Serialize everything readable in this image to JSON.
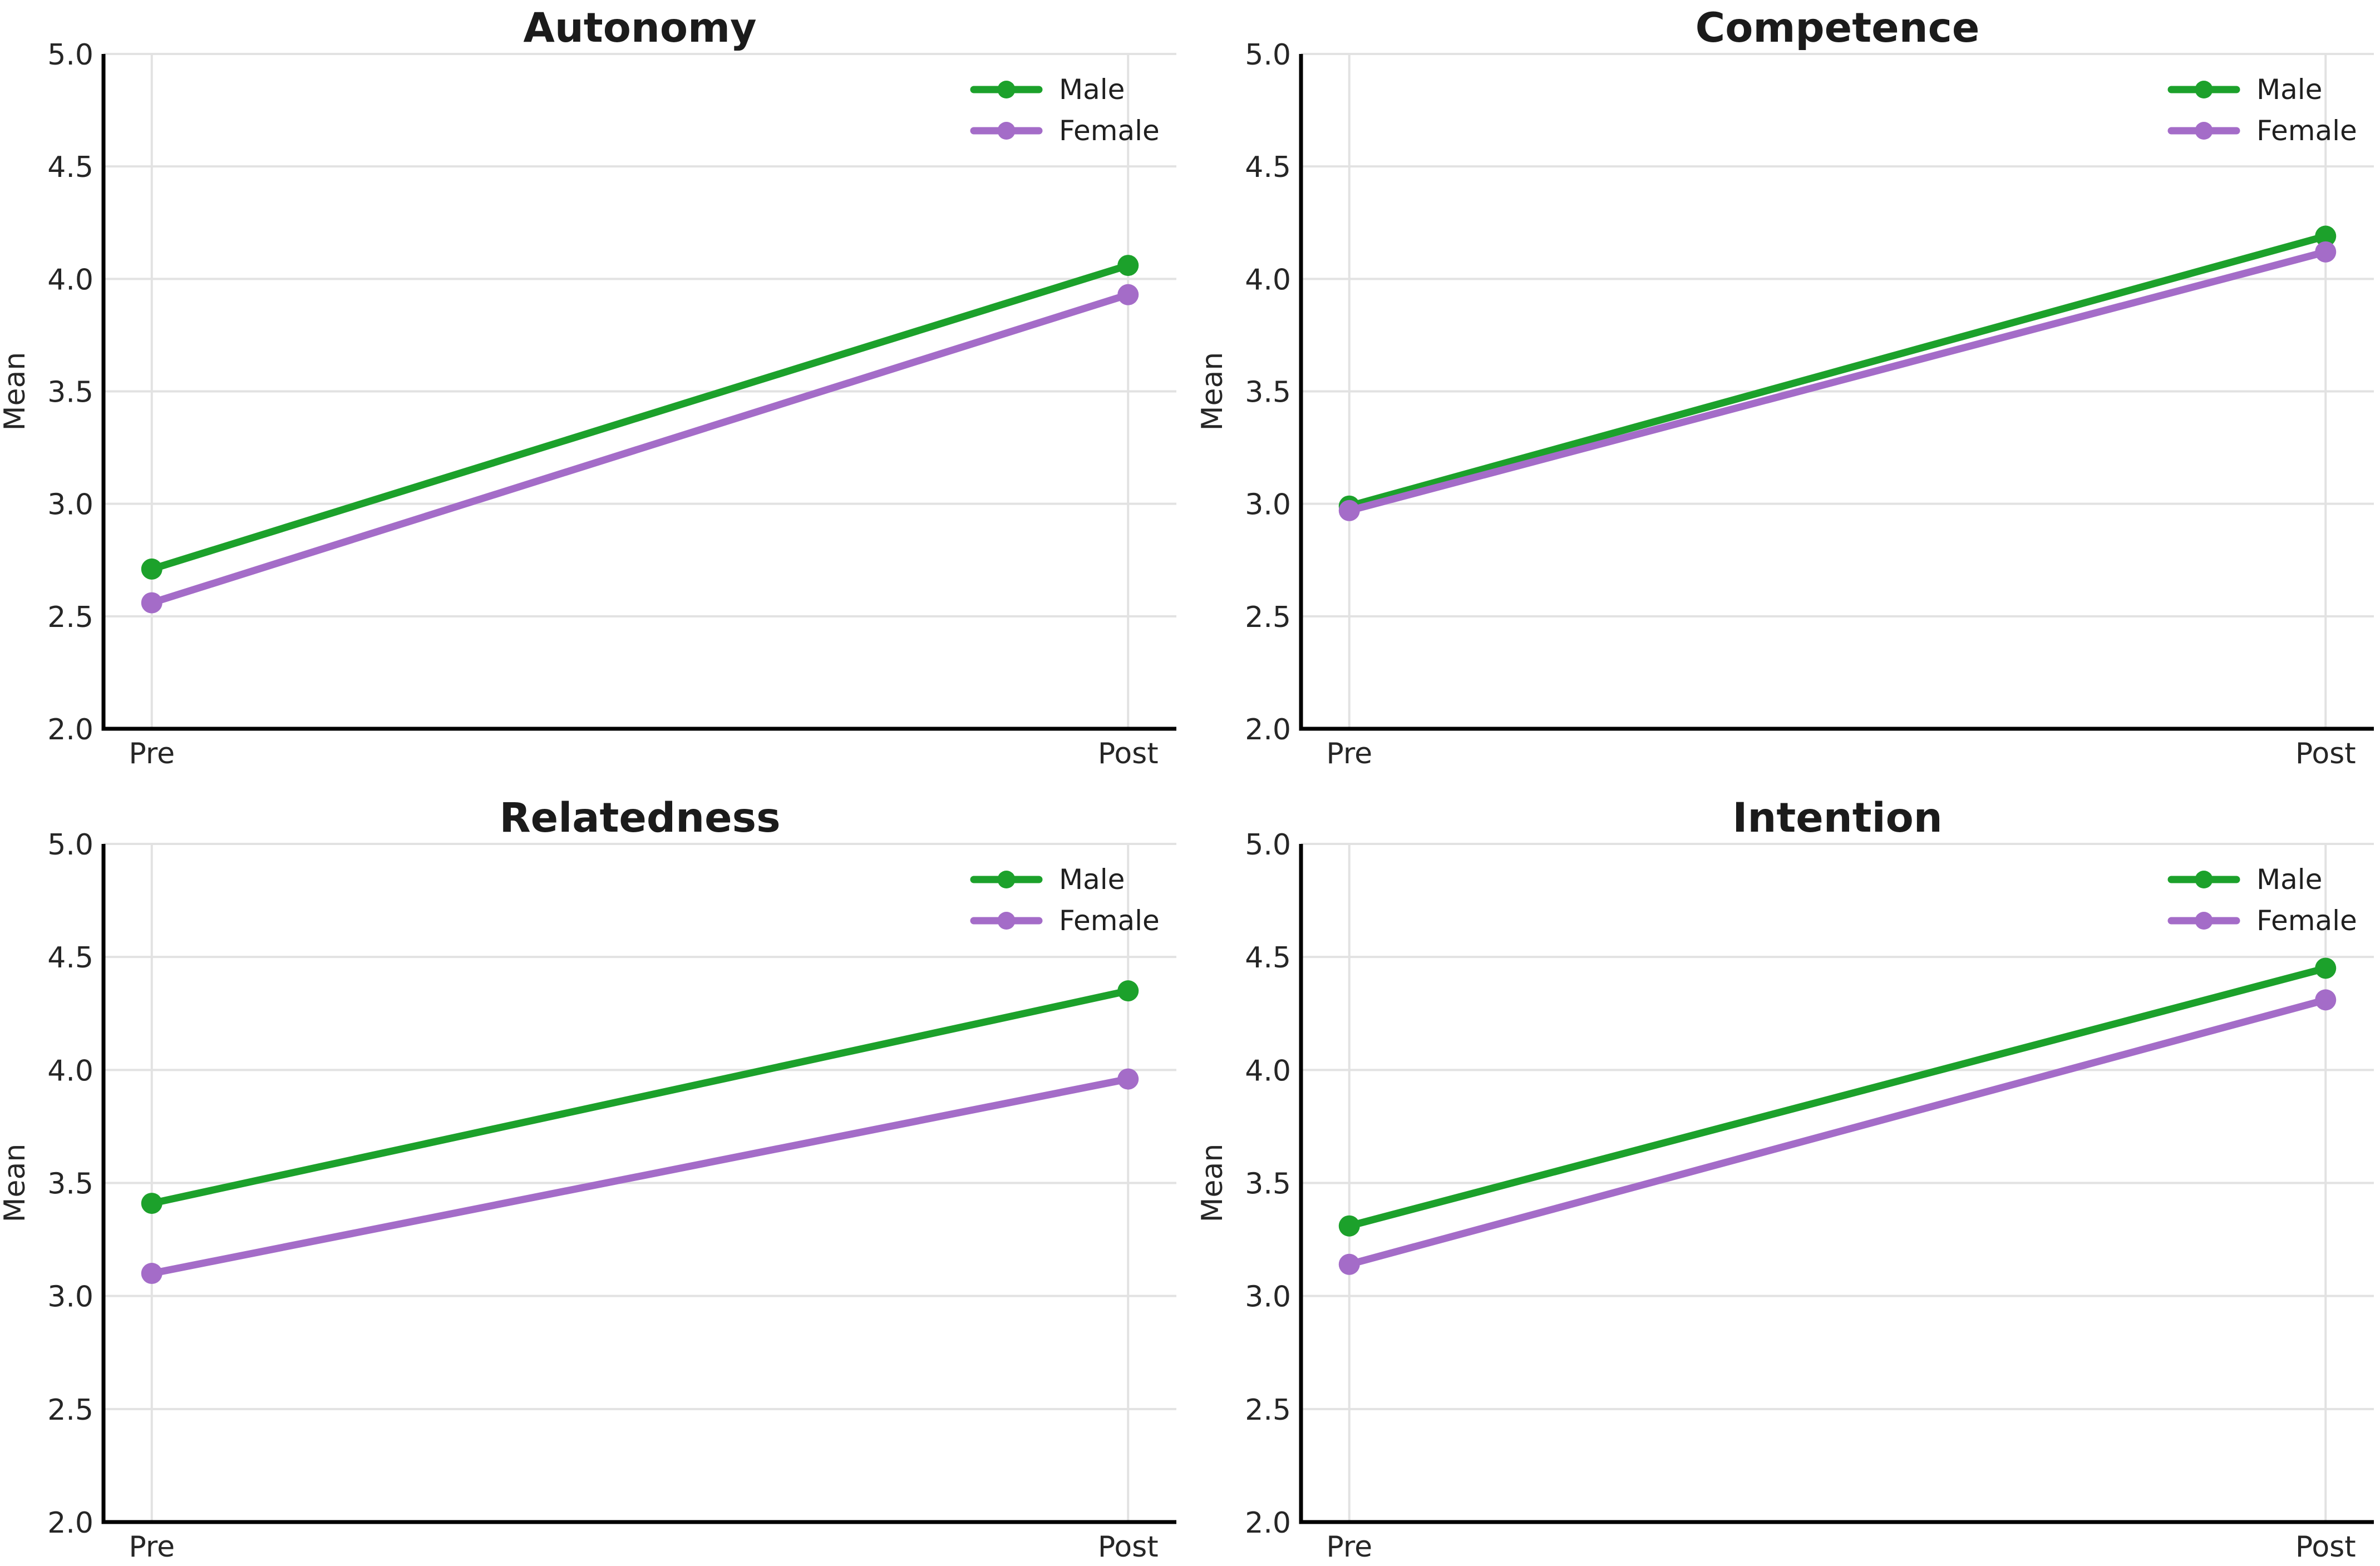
{
  "figure": {
    "background": "#ffffff"
  },
  "colors": {
    "male": "#1ca12b",
    "female": "#a46cc8",
    "grid": "#e2e2e2",
    "spine": "#000000",
    "tick_text": "#262626",
    "title_text": "#1b1b1b",
    "legend_text": "#1f1f1f"
  },
  "legend": {
    "labels": [
      "Male",
      "Female"
    ],
    "position": "upper right",
    "frame": false
  },
  "chart_data": [
    {
      "id": "autonomy",
      "type": "line",
      "title": "Autonomy",
      "categories": [
        "Pre",
        "Post"
      ],
      "xlabel": "",
      "ylabel": "Mean",
      "ylim": [
        2.0,
        5.0
      ],
      "yticks": [
        "2.0",
        "2.5",
        "3.0",
        "3.5",
        "4.0",
        "4.5",
        "5.0"
      ],
      "grid": true,
      "legend_position": "upper right",
      "series": [
        {
          "name": "Male",
          "color": "#1ca12b",
          "values": [
            2.71,
            4.06
          ]
        },
        {
          "name": "Female",
          "color": "#a46cc8",
          "values": [
            2.56,
            3.93
          ]
        }
      ]
    },
    {
      "id": "competence",
      "type": "line",
      "title": "Competence",
      "categories": [
        "Pre",
        "Post"
      ],
      "xlabel": "",
      "ylabel": "Mean",
      "ylim": [
        2.0,
        5.0
      ],
      "yticks": [
        "2.0",
        "2.5",
        "3.0",
        "3.5",
        "4.0",
        "4.5",
        "5.0"
      ],
      "grid": true,
      "legend_position": "upper right",
      "series": [
        {
          "name": "Male",
          "color": "#1ca12b",
          "values": [
            2.99,
            4.19
          ]
        },
        {
          "name": "Female",
          "color": "#a46cc8",
          "values": [
            2.97,
            4.12
          ]
        }
      ]
    },
    {
      "id": "relatedness",
      "type": "line",
      "title": "Relatedness",
      "categories": [
        "Pre",
        "Post"
      ],
      "xlabel": "",
      "ylabel": "Mean",
      "ylim": [
        2.0,
        5.0
      ],
      "yticks": [
        "2.0",
        "2.5",
        "3.0",
        "3.5",
        "4.0",
        "4.5",
        "5.0"
      ],
      "grid": true,
      "legend_position": "upper right",
      "series": [
        {
          "name": "Male",
          "color": "#1ca12b",
          "values": [
            3.41,
            4.35
          ]
        },
        {
          "name": "Female",
          "color": "#a46cc8",
          "values": [
            3.1,
            3.96
          ]
        }
      ]
    },
    {
      "id": "intention",
      "type": "line",
      "title": "Intention",
      "categories": [
        "Pre",
        "Post"
      ],
      "xlabel": "",
      "ylabel": "Mean",
      "ylim": [
        2.0,
        5.0
      ],
      "yticks": [
        "2.0",
        "2.5",
        "3.0",
        "3.5",
        "4.0",
        "4.5",
        "5.0"
      ],
      "grid": true,
      "legend_position": "upper right",
      "series": [
        {
          "name": "Male",
          "color": "#1ca12b",
          "values": [
            3.31,
            4.45
          ]
        },
        {
          "name": "Female",
          "color": "#a46cc8",
          "values": [
            3.14,
            4.31
          ]
        }
      ]
    }
  ]
}
